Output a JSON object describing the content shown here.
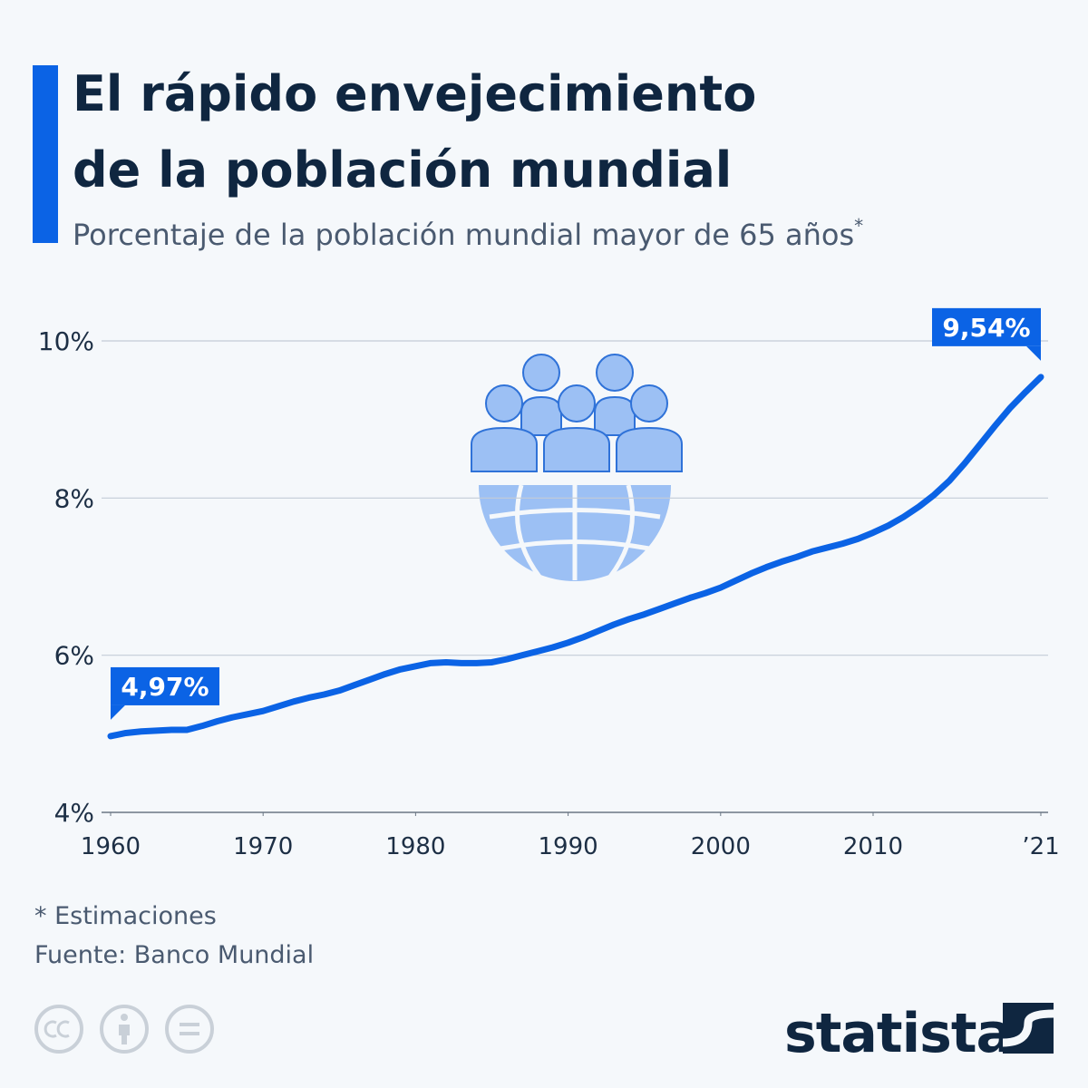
{
  "chart_data": {
    "type": "line",
    "title": [
      "El rápido envejecimiento",
      "de la población mundial"
    ],
    "subtitle": "Porcentaje de la población mundial mayor de 65 años",
    "subtitle_marker": "*",
    "footnote": "* Estimaciones",
    "source": "Fuente: Banco Mundial",
    "brand": "statista",
    "color": "#0b63e5",
    "x": [
      1960,
      1961,
      1962,
      1963,
      1964,
      1965,
      1966,
      1967,
      1968,
      1969,
      1970,
      1971,
      1972,
      1973,
      1974,
      1975,
      1976,
      1977,
      1978,
      1979,
      1980,
      1981,
      1982,
      1983,
      1984,
      1985,
      1986,
      1987,
      1988,
      1989,
      1990,
      1991,
      1992,
      1993,
      1994,
      1995,
      1996,
      1997,
      1998,
      1999,
      2000,
      2001,
      2002,
      2003,
      2004,
      2005,
      2006,
      2007,
      2008,
      2009,
      2010,
      2011,
      2012,
      2013,
      2014,
      2015,
      2016,
      2017,
      2018,
      2019,
      2020,
      2021
    ],
    "values": [
      4.97,
      5.01,
      5.03,
      5.04,
      5.05,
      5.05,
      5.1,
      5.16,
      5.21,
      5.25,
      5.29,
      5.35,
      5.41,
      5.46,
      5.5,
      5.55,
      5.62,
      5.69,
      5.76,
      5.82,
      5.86,
      5.9,
      5.91,
      5.9,
      5.9,
      5.91,
      5.95,
      6.0,
      6.05,
      6.1,
      6.16,
      6.23,
      6.31,
      6.39,
      6.46,
      6.52,
      6.59,
      6.66,
      6.73,
      6.79,
      6.86,
      6.95,
      7.04,
      7.12,
      7.19,
      7.25,
      7.32,
      7.37,
      7.42,
      7.48,
      7.56,
      7.65,
      7.76,
      7.89,
      8.04,
      8.22,
      8.44,
      8.68,
      8.92,
      9.15,
      9.35,
      9.54
    ],
    "value_labels": [
      "4,97%",
      null,
      null,
      null,
      null,
      null,
      null,
      null,
      null,
      null,
      null,
      null,
      null,
      null,
      null,
      null,
      null,
      null,
      null,
      null,
      null,
      null,
      null,
      null,
      null,
      null,
      null,
      null,
      null,
      null,
      null,
      null,
      null,
      null,
      null,
      null,
      null,
      null,
      null,
      null,
      null,
      null,
      null,
      null,
      null,
      null,
      null,
      null,
      null,
      null,
      null,
      null,
      null,
      null,
      null,
      null,
      null,
      null,
      null,
      null,
      null,
      "9,54%"
    ],
    "xlim": [
      1960,
      2021
    ],
    "xticks": [
      1960,
      1970,
      1980,
      1990,
      2000,
      2010,
      {
        "value": 2021,
        "label": "’21"
      }
    ],
    "ylim": [
      4,
      10
    ],
    "yticks": [
      {
        "value": 4,
        "label": "4%"
      },
      {
        "value": 6,
        "label": "6%"
      },
      {
        "value": 8,
        "label": "8%"
      },
      {
        "value": 10,
        "label": "10%"
      }
    ],
    "grid": true
  }
}
